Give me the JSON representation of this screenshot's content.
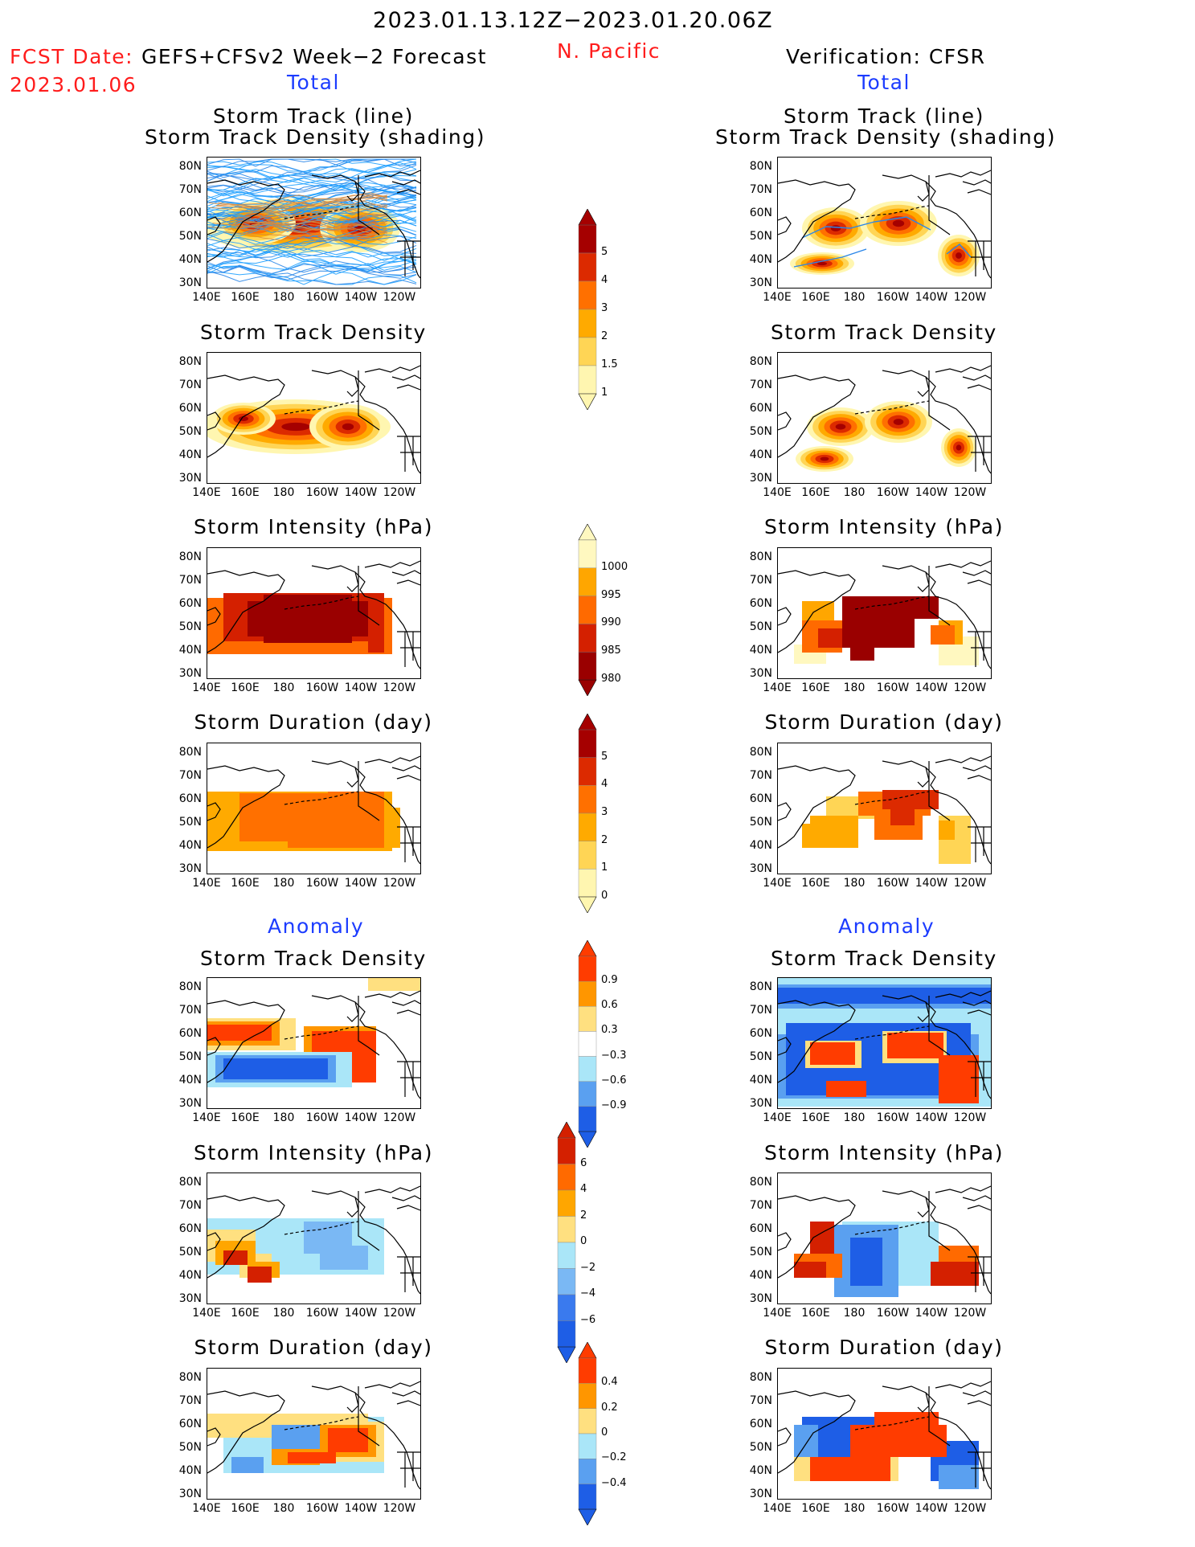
{
  "header": {
    "date_range": "2023.01.13.12Z−2023.01.20.06Z",
    "fcst_label": "FCST Date:",
    "fcst_model": "GEFS+CFSv2 Week−2 Forecast",
    "fcst_date": "2023.01.06",
    "region": "N. Pacific",
    "verification": "Verification: CFSR"
  },
  "sections": {
    "total_left": "Total",
    "total_right": "Total",
    "anomaly_left": "Anomaly",
    "anomaly_right": "Anomaly"
  },
  "panel_titles": {
    "track_line": "Storm Track (line)",
    "track_density_shading": "Storm Track Density (shading)",
    "track_density": "Storm Track Density",
    "intensity": "Storm Intensity (hPa)",
    "duration": "Storm Duration (day)"
  },
  "axes": {
    "lat_ticks": [
      "80N",
      "70N",
      "60N",
      "50N",
      "40N",
      "30N"
    ],
    "lon_ticks": [
      "140E",
      "160E",
      "180",
      "160W",
      "140W",
      "120W"
    ]
  },
  "colorbars": {
    "density_total": {
      "labels": [
        "5",
        "4",
        "3",
        "2",
        "1.5",
        "1"
      ],
      "colors": [
        "#a50000",
        "#dc2a00",
        "#ff7000",
        "#ffaa00",
        "#ffd555",
        "#fff6b0"
      ]
    },
    "intensity_total": {
      "labels": [
        "1000",
        "995",
        "990",
        "985",
        "980"
      ],
      "colors": [
        "#fff8c0",
        "#ffa600",
        "#ff6a00",
        "#d42000",
        "#9a0000"
      ]
    },
    "duration_total": {
      "labels": [
        "5",
        "4",
        "3",
        "2",
        "1",
        "0"
      ],
      "colors": [
        "#a50000",
        "#dc2a00",
        "#ff7000",
        "#ffaa00",
        "#ffd555",
        "#fff6b0"
      ]
    },
    "density_anom": {
      "labels": [
        "0.9",
        "0.6",
        "0.3",
        "−0.3",
        "−0.6",
        "−0.9"
      ],
      "colors": [
        "#ff3c00",
        "#ff9600",
        "#ffe080",
        "#ffffff",
        "#aae6f8",
        "#5aa0f0",
        "#1e5ee6"
      ]
    },
    "intensity_anom": {
      "labels": [
        "6",
        "4",
        "2",
        "0",
        "−2",
        "−4",
        "−6"
      ],
      "colors": [
        "#d42000",
        "#ff6a00",
        "#ffa600",
        "#ffe080",
        "#aae6f8",
        "#7ab8f4",
        "#3a7aee",
        "#1e5ee6"
      ]
    },
    "duration_anom": {
      "labels": [
        "0.4",
        "0.2",
        "0",
        "−0.2",
        "−0.4"
      ],
      "colors": [
        "#ff3c00",
        "#ff9600",
        "#ffe080",
        "#aae6f8",
        "#5aa0f0",
        "#1e5ee6"
      ]
    }
  },
  "colors": {
    "header_red": "#ff1c1c",
    "header_blue": "#1c3cff",
    "track_line": "#1ea0ff"
  }
}
